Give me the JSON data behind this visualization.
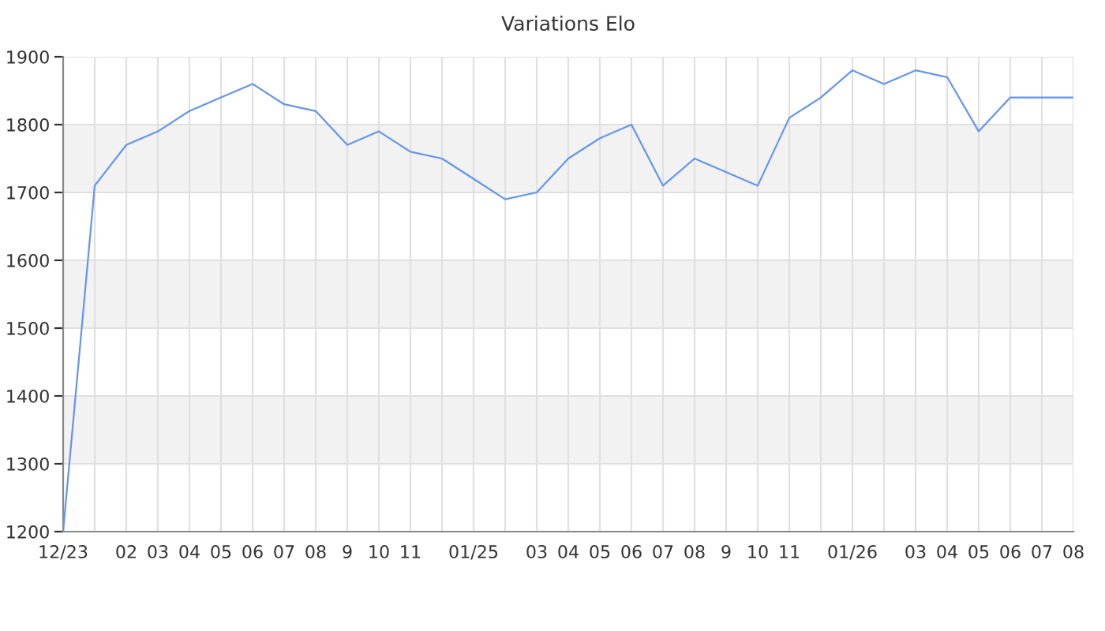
{
  "chart_data": {
    "type": "line",
    "title": "Variations Elo",
    "categories": [
      "12/23",
      null,
      "02",
      "03",
      "04",
      "05",
      "06",
      "07",
      "08",
      "9",
      "10",
      "11",
      null,
      "01/25",
      null,
      "03",
      "04",
      "05",
      "06",
      "07",
      "08",
      "9",
      "10",
      "11",
      null,
      "01/26",
      null,
      "03",
      "04",
      "05",
      "06",
      "07",
      "08"
    ],
    "series": [
      {
        "color": "#6495ed",
        "values": [
          1200,
          1710,
          1770,
          1790,
          1820,
          1840,
          1860,
          1830,
          1820,
          1770,
          1790,
          1760,
          1750,
          1720,
          1690,
          1700,
          1750,
          1780,
          1800,
          1710,
          1750,
          1730,
          1710,
          1810,
          1840,
          1880,
          1860,
          1880,
          1870,
          1790,
          1840,
          1840,
          1840
        ]
      }
    ],
    "ylim": [
      1200,
      1900
    ],
    "yticks": [
      1200,
      1300,
      1400,
      1500,
      1600,
      1700,
      1800,
      1900
    ],
    "bands": [
      {
        "axis": "y",
        "from": 1300,
        "to": 1400,
        "color": "#f2f2f2"
      },
      {
        "axis": "y",
        "from": 1500,
        "to": 1600,
        "color": "#f2f2f2"
      },
      {
        "axis": "y",
        "from": 1700,
        "to": 1800,
        "color": "#f2f2f2"
      }
    ],
    "grid": true,
    "line_style": "solid",
    "marker": "none"
  }
}
